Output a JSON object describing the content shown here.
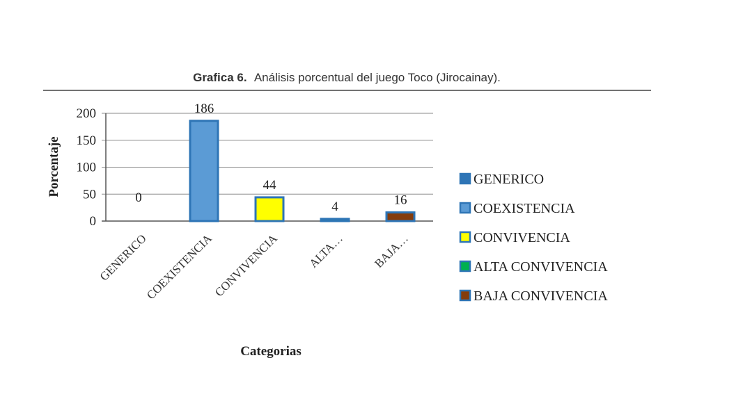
{
  "caption": {
    "prefix": "Grafica 6.",
    "text": "Análisis porcentual del juego Toco (Jirocainay)."
  },
  "chart_data": {
    "type": "bar",
    "xlabel": "Categorias",
    "ylabel": "Porcentaje",
    "ylim": [
      0,
      200
    ],
    "yticks": [
      0,
      50,
      100,
      150,
      200
    ],
    "grid": true,
    "legend_position": "right",
    "categories": [
      "GENERICO",
      "COEXISTENCIA",
      "CONVIVENCIA",
      "ALTA CONVIVENCIA",
      "BAJA CONVIVENCIA"
    ],
    "tick_labels": [
      "GENERICO",
      "COEXISTENCIA",
      "CONVIVENCIA",
      "ALTA…",
      "BAJA…"
    ],
    "values": [
      0,
      186,
      44,
      4,
      16
    ],
    "data_labels": [
      "0",
      "186",
      "44",
      "4",
      "16"
    ],
    "colors": [
      "#2E75B6",
      "#5B9BD5",
      "#FFFF00",
      "#00B050",
      "#843C0C"
    ],
    "border_color": "#2E75B6",
    "legend": [
      "GENERICO",
      "COEXISTENCIA",
      "CONVIVENCIA",
      "ALTA CONVIVENCIA",
      "BAJA CONVIVENCIA"
    ]
  }
}
